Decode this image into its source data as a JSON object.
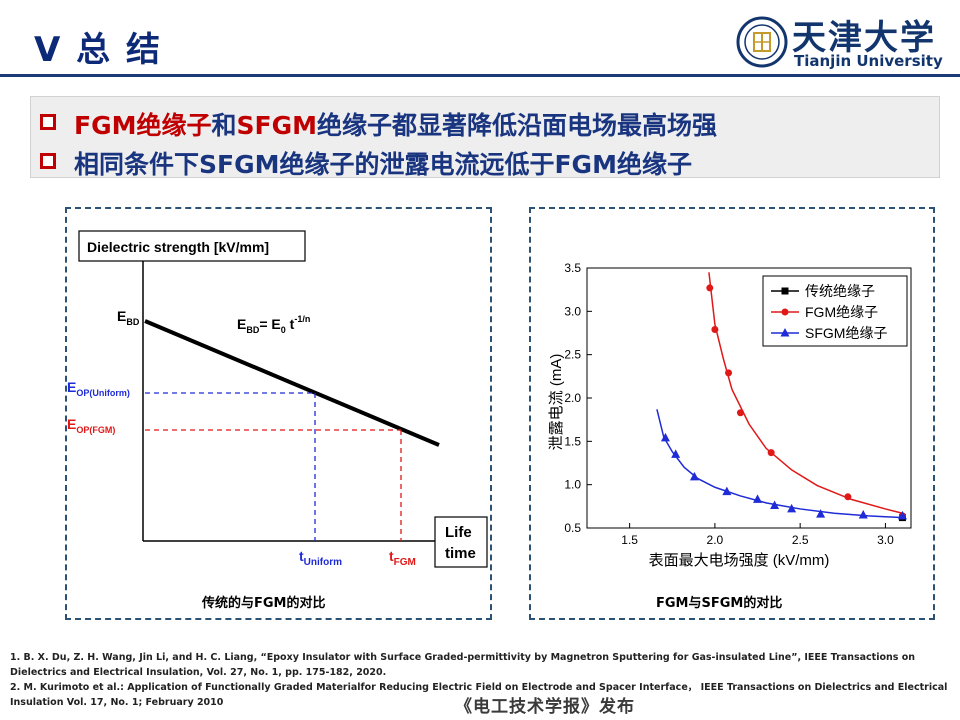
{
  "header": {
    "title": "V 总 结",
    "university_cn": "天津大学",
    "university_en": "Tianjin University"
  },
  "summary": {
    "bullets": [
      {
        "a_red": "FGM绝缘子",
        "b": "和",
        "c_red": "SFGM",
        "d": "绝缘子都显著降低沿面电场最高场强"
      },
      {
        "a_red": "",
        "b": "相同条件下SFGM绝缘子的泄露电流远低于FGM绝缘子",
        "c_red": "",
        "d": ""
      }
    ]
  },
  "left_panel": {
    "caption": "传统的与FGM的对比"
  },
  "right_panel": {
    "caption": "FGM与SFGM的对比"
  },
  "chart_data": [
    {
      "type": "line",
      "ylabel_box": "Dielectric strength [kV/mm]",
      "xlabel_box_lines": [
        "Life",
        "time"
      ],
      "equation": {
        "main": "E",
        "sub1": "BD",
        "eq": "= E",
        "sub2": "0",
        "t": " t",
        "sup": "-1/n"
      },
      "labels": {
        "ebd": "E",
        "ebd_sub": "BD",
        "eop_u": "E",
        "eop_u_sub": "OP(Uniform)",
        "eop_f": "E",
        "eop_f_sub": "OP(FGM)",
        "tu": "t",
        "tu_sub": "Uniform",
        "tf": "t",
        "tf_sub": "FGM"
      },
      "line_color": "#000000",
      "uniform_color": "#1f2bd6",
      "fgm_color": "#e01818"
    },
    {
      "type": "scatter",
      "xlabel": "表面最大电场强度 (kV/mm)",
      "ylabel": "泄露电流 (mA)",
      "xlim": [
        1.25,
        3.15
      ],
      "ylim": [
        0.5,
        3.5
      ],
      "xticks": [
        "1.5",
        "2.0",
        "2.5",
        "3.0"
      ],
      "yticks": [
        "0.5",
        "1.0",
        "1.5",
        "2.0",
        "2.5",
        "3.0",
        "3.5"
      ],
      "legend_position": "top-right",
      "series": [
        {
          "name": "传统绝缘子",
          "color": "#000000",
          "marker": "square",
          "points": [
            [
              3.1,
              0.62
            ]
          ],
          "curve": []
        },
        {
          "name": "FGM绝缘子",
          "color": "#e01818",
          "marker": "circle",
          "points": [
            [
              1.97,
              3.27
            ],
            [
              2.0,
              2.79
            ],
            [
              2.08,
              2.29
            ],
            [
              2.15,
              1.83
            ],
            [
              2.33,
              1.37
            ],
            [
              2.78,
              0.86
            ],
            [
              3.1,
              0.64
            ]
          ],
          "curve": [
            [
              1.965,
              3.45
            ],
            [
              2.0,
              2.85
            ],
            [
              2.05,
              2.45
            ],
            [
              2.1,
              2.1
            ],
            [
              2.2,
              1.7
            ],
            [
              2.3,
              1.42
            ],
            [
              2.45,
              1.17
            ],
            [
              2.6,
              0.99
            ],
            [
              2.8,
              0.83
            ],
            [
              3.0,
              0.72
            ],
            [
              3.1,
              0.67
            ]
          ]
        },
        {
          "name": "SFGM绝缘子",
          "color": "#1f2bd6",
          "marker": "triangle",
          "points": [
            [
              1.71,
              1.54
            ],
            [
              1.77,
              1.35
            ],
            [
              1.88,
              1.09
            ],
            [
              2.07,
              0.92
            ],
            [
              2.25,
              0.83
            ],
            [
              2.35,
              0.76
            ],
            [
              2.45,
              0.72
            ],
            [
              2.62,
              0.66
            ],
            [
              2.87,
              0.65
            ],
            [
              3.1,
              0.64
            ]
          ],
          "curve": [
            [
              1.66,
              1.87
            ],
            [
              1.7,
              1.55
            ],
            [
              1.75,
              1.38
            ],
            [
              1.82,
              1.2
            ],
            [
              1.9,
              1.07
            ],
            [
              2.0,
              0.97
            ],
            [
              2.15,
              0.87
            ],
            [
              2.3,
              0.79
            ],
            [
              2.5,
              0.72
            ],
            [
              2.7,
              0.67
            ],
            [
              2.9,
              0.64
            ],
            [
              3.1,
              0.62
            ]
          ]
        }
      ]
    }
  ],
  "references": [
    "1. B. X. Du, Z. H. Wang, Jin Li, and H. C. Liang, “Epoxy Insulator with Surface Graded-permittivity by Magnetron Sputtering for Gas-insulated Line”, IEEE Transactions on Dielectrics and Electrical Insulation,  Vol. 27, No. 1, pp. 175-182, 2020.",
    "2. M. Kurimoto et al.: Application of Functionally Graded Materialfor Reducing Electric Field on Electrode and Spacer Interface， IEEE Transactions on Dielectrics and Electrical Insulation Vol. 17, No. 1; February 2010"
  ],
  "footer": "《电工技术学报》发布",
  "colors": {
    "title": "#0d2a78",
    "accent_red": "#c00000",
    "bullet_text": "#1a3580"
  }
}
